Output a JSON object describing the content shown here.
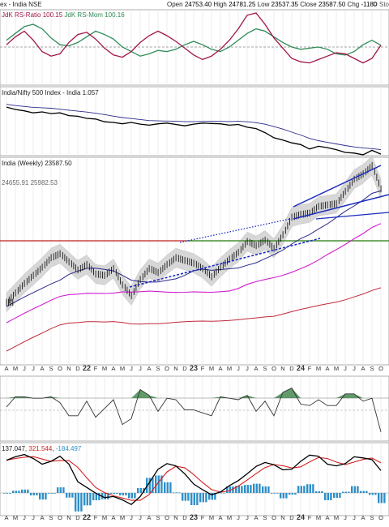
{
  "header": {
    "title": "ex - India NSE",
    "open_label": "Open",
    "open": "24753.40",
    "high_label": "High",
    "high": "24781.25",
    "low_label": "Low",
    "low": "23537.35",
    "close_label": "Close",
    "close": "23587.50",
    "chg_label": "Chg",
    "chg": "-1180",
    "brand": "© Sto"
  },
  "panels": {
    "rrg": {
      "label_a": "JdK RS-Ratio",
      "value_a": "100.15",
      "label_b": "JdK RS-Mom",
      "value_b": "100.16"
    },
    "relative": {
      "label": "India/Nifty 500 Index - India",
      "value": "1.057"
    },
    "price": {
      "label": "India (Weekly)",
      "value": "23587.50",
      "bb_upper": "24655.91",
      "bb_lower": "25982.53"
    },
    "macd": {
      "v1": "137.047",
      "v2": "321.544",
      "v3": "-184.497"
    }
  },
  "x_axis": {
    "month_labels": [
      "A",
      "M",
      "J",
      "J",
      "A",
      "S",
      "O",
      "N",
      "D",
      "22",
      "F",
      "M",
      "A",
      "M",
      "J",
      "J",
      "A",
      "S",
      "O",
      "N",
      "D",
      "23",
      "F",
      "M",
      "A",
      "M",
      "J",
      "J",
      "A",
      "S",
      "O",
      "N",
      "D",
      "24",
      "F",
      "M",
      "A",
      "M",
      "J",
      "J",
      "A",
      "S",
      "O"
    ]
  },
  "colors": {
    "rs_ratio": "#2e8b57",
    "rs_mom": "#a0144a",
    "price": "#000000",
    "ma_short": "#2a2a8a",
    "ma_mid": "#d020d0",
    "ma_long": "#c0283c",
    "trend": "#1a2dbf",
    "support_red": "#c0201c",
    "support_green": "#2a9a2a",
    "band": "#d7d7d7",
    "hist": "#2f8fc8",
    "macd_signal": "#d42020"
  },
  "chart_data": {
    "type": "line",
    "x": [
      "2021-04",
      "2021-05",
      "2021-06",
      "2021-07",
      "2021-08",
      "2021-09",
      "2021-10",
      "2021-11",
      "2021-12",
      "2022-01",
      "2022-02",
      "2022-03",
      "2022-04",
      "2022-05",
      "2022-06",
      "2022-07",
      "2022-08",
      "2022-09",
      "2022-10",
      "2022-11",
      "2022-12",
      "2023-01",
      "2023-02",
      "2023-03",
      "2023-04",
      "2023-05",
      "2023-06",
      "2023-07",
      "2023-08",
      "2023-09",
      "2023-10",
      "2023-11",
      "2023-12",
      "2024-01",
      "2024-02",
      "2024-03",
      "2024-04",
      "2024-05",
      "2024-06",
      "2024-07",
      "2024-08",
      "2024-09",
      "2024-10"
    ],
    "series": [
      {
        "name": "India (Weekly)",
        "values": [
          15200,
          15900,
          16600,
          17200,
          17800,
          18500,
          18800,
          18200,
          17600,
          18000,
          17300,
          17200,
          17700,
          16500,
          15700,
          16900,
          17700,
          17400,
          18000,
          18500,
          18300,
          18100,
          17700,
          17100,
          17800,
          18400,
          18900,
          19700,
          19400,
          19800,
          19200,
          20200,
          21500,
          21700,
          21800,
          22300,
          22400,
          22500,
          23400,
          24300,
          24700,
          25300,
          23587.5
        ]
      },
      {
        "name": "JdK RS-Ratio",
        "values": [
          100.6,
          101.2,
          101.8,
          102.0,
          101.6,
          100.8,
          100.2,
          100.1,
          100.4,
          100.9,
          101.4,
          101.1,
          100.7,
          100.0,
          99.6,
          99.2,
          99.4,
          99.7,
          99.6,
          99.8,
          100.2,
          100.5,
          100.2,
          99.8,
          99.6,
          100.0,
          100.6,
          101.2,
          101.6,
          101.4,
          100.9,
          100.4,
          100.0,
          99.8,
          99.9,
          100.0,
          99.8,
          99.4,
          99.3,
          99.6,
          100.2,
          100.6,
          100.15
        ]
      },
      {
        "name": "JdK RS-Mom",
        "values": [
          100.2,
          100.9,
          101.4,
          100.6,
          99.6,
          99.2,
          99.4,
          100.4,
          101.1,
          101.3,
          100.7,
          99.9,
          99.3,
          99.1,
          99.6,
          100.4,
          101.0,
          101.4,
          101.0,
          100.5,
          99.9,
          99.3,
          98.9,
          99.2,
          99.8,
          100.6,
          101.6,
          102.8,
          103.0,
          102.0,
          100.8,
          99.9,
          99.0,
          98.7,
          98.6,
          98.9,
          99.2,
          99.5,
          99.4,
          99.0,
          98.6,
          99.0,
          100.16
        ]
      },
      {
        "name": "India/Nifty 500 Index - India",
        "values": [
          1.195,
          1.188,
          1.184,
          1.178,
          1.181,
          1.176,
          1.178,
          1.17,
          1.168,
          1.162,
          1.16,
          1.152,
          1.15,
          1.146,
          1.15,
          1.145,
          1.142,
          1.146,
          1.148,
          1.144,
          1.14,
          1.145,
          1.148,
          1.147,
          1.146,
          1.142,
          1.144,
          1.136,
          1.132,
          1.12,
          1.105,
          1.098,
          1.09,
          1.085,
          1.072,
          1.08,
          1.076,
          1.07,
          1.062,
          1.06,
          1.055,
          1.068,
          1.057
        ]
      },
      {
        "name": "137.047",
        "values": [
          320,
          380,
          420,
          350,
          250,
          300,
          390,
          250,
          -60,
          -160,
          -260,
          -340,
          -320,
          -380,
          -460,
          -320,
          -80,
          160,
          260,
          220,
          80,
          -100,
          -200,
          -290,
          -240,
          -130,
          -40,
          80,
          210,
          280,
          240,
          150,
          160,
          300,
          410,
          390,
          250,
          220,
          260,
          380,
          360,
          330,
          137.047
        ]
      }
    ]
  }
}
